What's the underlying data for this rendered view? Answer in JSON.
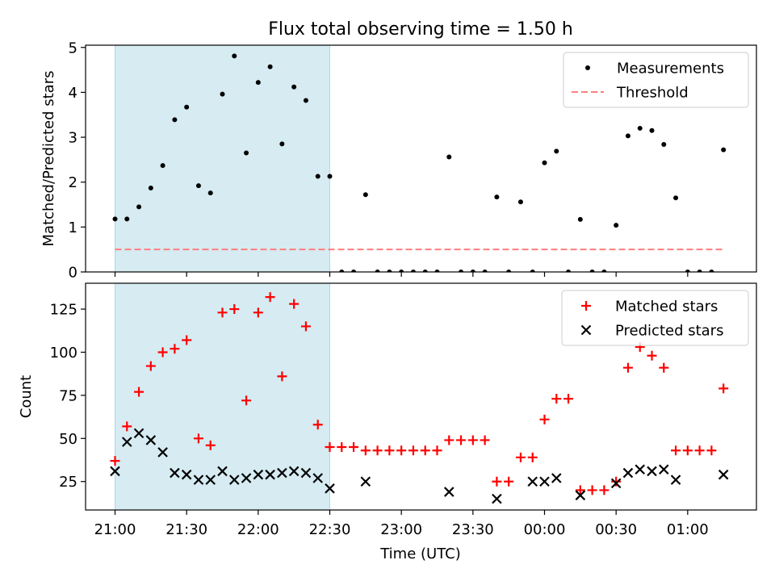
{
  "title": "Flux total observing time = 1.50 h",
  "colors": {
    "shade": "#add8e6",
    "measurements": "#000000",
    "threshold": "#ff7f7f",
    "matched": "#ff0000",
    "predicted": "#000000"
  },
  "chart_data": [
    {
      "type": "scatter",
      "panel": "top",
      "ylabel": "Matched/Predicted stars",
      "ylim": [
        0,
        5.05
      ],
      "yticks": [
        0,
        1,
        2,
        3,
        4,
        5
      ],
      "shaded_interval": [
        "21:00",
        "22:30"
      ],
      "legend": {
        "placement": "top-right",
        "entries": [
          "Measurements",
          "Threshold"
        ]
      },
      "series": [
        {
          "name": "Measurements",
          "marker": "dot",
          "points": [
            [
              "21:00",
              1.18
            ],
            [
              "21:05",
              1.18
            ],
            [
              "21:10",
              1.45
            ],
            [
              "21:15",
              1.87
            ],
            [
              "21:20",
              2.37
            ],
            [
              "21:25",
              3.39
            ],
            [
              "21:30",
              3.67
            ],
            [
              "21:35",
              1.92
            ],
            [
              "21:40",
              1.76
            ],
            [
              "21:45",
              3.96
            ],
            [
              "21:50",
              4.81
            ],
            [
              "21:55",
              2.65
            ],
            [
              "22:00",
              4.22
            ],
            [
              "22:05",
              4.57
            ],
            [
              "22:10",
              2.85
            ],
            [
              "22:15",
              4.12
            ],
            [
              "22:20",
              3.82
            ],
            [
              "22:25",
              2.13
            ],
            [
              "22:30",
              2.13
            ],
            [
              "22:35",
              0
            ],
            [
              "22:40",
              0
            ],
            [
              "22:45",
              1.72
            ],
            [
              "22:50",
              0
            ],
            [
              "22:55",
              0
            ],
            [
              "23:00",
              0
            ],
            [
              "23:05",
              0
            ],
            [
              "23:10",
              0
            ],
            [
              "23:15",
              0
            ],
            [
              "23:20",
              2.56
            ],
            [
              "23:25",
              0
            ],
            [
              "23:30",
              0
            ],
            [
              "23:35",
              0
            ],
            [
              "23:40",
              1.67
            ],
            [
              "23:45",
              0
            ],
            [
              "23:50",
              1.56
            ],
            [
              "23:55",
              0
            ],
            [
              "00:00",
              2.43
            ],
            [
              "00:05",
              2.69
            ],
            [
              "00:10",
              0
            ],
            [
              "00:15",
              1.17
            ],
            [
              "00:20",
              0
            ],
            [
              "00:25",
              0
            ],
            [
              "00:30",
              1.04
            ],
            [
              "00:35",
              3.03
            ],
            [
              "00:40",
              3.2
            ],
            [
              "00:45",
              3.15
            ],
            [
              "00:50",
              2.84
            ],
            [
              "00:55",
              1.65
            ],
            [
              "01:00",
              0
            ],
            [
              "01:05",
              0
            ],
            [
              "01:10",
              0
            ],
            [
              "01:15",
              2.72
            ]
          ]
        },
        {
          "name": "Threshold",
          "style": "dashed",
          "points": [
            [
              "21:00",
              0.5
            ],
            [
              "01:15",
              0.5
            ]
          ]
        }
      ]
    },
    {
      "type": "scatter",
      "panel": "bottom",
      "xlabel": "Time (UTC)",
      "ylabel": "Count",
      "ylim": [
        8.5,
        140
      ],
      "yticks": [
        25,
        50,
        75,
        100,
        125
      ],
      "xticks": [
        "21:00",
        "21:30",
        "22:00",
        "22:30",
        "23:00",
        "23:30",
        "00:00",
        "00:30",
        "01:00"
      ],
      "shaded_interval": [
        "21:00",
        "22:30"
      ],
      "legend": {
        "placement": "top-right",
        "entries": [
          "Matched stars",
          "Predicted stars"
        ]
      },
      "series": [
        {
          "name": "Matched stars",
          "marker": "plus",
          "points": [
            [
              "21:00",
              37
            ],
            [
              "21:05",
              57
            ],
            [
              "21:10",
              77
            ],
            [
              "21:15",
              92
            ],
            [
              "21:20",
              100
            ],
            [
              "21:25",
              102
            ],
            [
              "21:30",
              107
            ],
            [
              "21:35",
              50
            ],
            [
              "21:40",
              46
            ],
            [
              "21:45",
              123
            ],
            [
              "21:50",
              125
            ],
            [
              "21:55",
              72
            ],
            [
              "22:00",
              123
            ],
            [
              "22:05",
              132
            ],
            [
              "22:10",
              86
            ],
            [
              "22:15",
              128
            ],
            [
              "22:20",
              115
            ],
            [
              "22:25",
              58
            ],
            [
              "22:30",
              45
            ],
            [
              "22:35",
              45
            ],
            [
              "22:40",
              45
            ],
            [
              "22:45",
              43
            ],
            [
              "22:50",
              43
            ],
            [
              "22:55",
              43
            ],
            [
              "23:00",
              43
            ],
            [
              "23:05",
              43
            ],
            [
              "23:10",
              43
            ],
            [
              "23:15",
              43
            ],
            [
              "23:20",
              49
            ],
            [
              "23:25",
              49
            ],
            [
              "23:30",
              49
            ],
            [
              "23:35",
              49
            ],
            [
              "23:40",
              25
            ],
            [
              "23:45",
              25
            ],
            [
              "23:50",
              39
            ],
            [
              "23:55",
              39
            ],
            [
              "00:00",
              61
            ],
            [
              "00:05",
              73
            ],
            [
              "00:10",
              73
            ],
            [
              "00:15",
              20
            ],
            [
              "00:20",
              20
            ],
            [
              "00:25",
              20
            ],
            [
              "00:30",
              25
            ],
            [
              "00:35",
              91
            ],
            [
              "00:40",
              103
            ],
            [
              "00:45",
              98
            ],
            [
              "00:50",
              91
            ],
            [
              "00:55",
              43
            ],
            [
              "01:00",
              43
            ],
            [
              "01:05",
              43
            ],
            [
              "01:10",
              43
            ],
            [
              "01:15",
              79
            ]
          ]
        },
        {
          "name": "Predicted stars",
          "marker": "x",
          "points": [
            [
              "21:00",
              31
            ],
            [
              "21:05",
              48
            ],
            [
              "21:10",
              53
            ],
            [
              "21:15",
              49
            ],
            [
              "21:20",
              42
            ],
            [
              "21:25",
              30
            ],
            [
              "21:30",
              29
            ],
            [
              "21:35",
              26
            ],
            [
              "21:40",
              26
            ],
            [
              "21:45",
              31
            ],
            [
              "21:50",
              26
            ],
            [
              "21:55",
              27
            ],
            [
              "22:00",
              29
            ],
            [
              "22:05",
              29
            ],
            [
              "22:10",
              30
            ],
            [
              "22:15",
              31
            ],
            [
              "22:20",
              30
            ],
            [
              "22:25",
              27
            ],
            [
              "22:30",
              21
            ],
            [
              "22:45",
              25
            ],
            [
              "23:20",
              19
            ],
            [
              "23:40",
              15
            ],
            [
              "23:55",
              25
            ],
            [
              "00:00",
              25
            ],
            [
              "00:05",
              27
            ],
            [
              "00:15",
              17
            ],
            [
              "00:30",
              24
            ],
            [
              "00:35",
              30
            ],
            [
              "00:40",
              32
            ],
            [
              "00:45",
              31
            ],
            [
              "00:50",
              32
            ],
            [
              "00:55",
              26
            ],
            [
              "01:15",
              29
            ]
          ]
        }
      ]
    }
  ]
}
